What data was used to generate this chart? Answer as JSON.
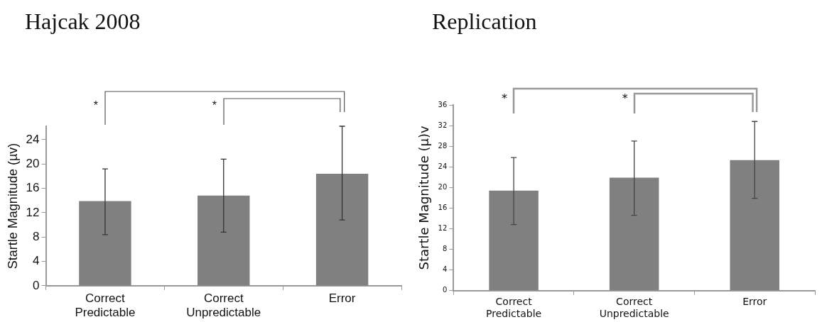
{
  "chart_data": [
    {
      "type": "bar",
      "title": "Hajcak 2008",
      "ylabel": "Startle Magnitude (µv)",
      "categories": [
        "Correct\nPredictable",
        "Correct\nUnpredictable",
        "Error"
      ],
      "values": [
        13.9,
        14.8,
        18.4
      ],
      "errors": [
        [
          8.4,
          19.2
        ],
        [
          8.8,
          20.8
        ],
        [
          10.8,
          26.2
        ]
      ],
      "color": "#808080",
      "ylim": [
        0,
        26.2
      ],
      "yticks": [
        0,
        4,
        8,
        12,
        16,
        20,
        24
      ],
      "grid": false,
      "legend": false,
      "annotations": [
        "*",
        "*"
      ]
    },
    {
      "type": "bar",
      "title": "Replication",
      "ylabel": "Startle Magnitude (µ)v",
      "categories": [
        "Correct\nPredictable",
        "Correct\nUnpredictable",
        "Error"
      ],
      "values": [
        19.4,
        21.9,
        25.3
      ],
      "errors": [
        [
          12.8,
          25.8
        ],
        [
          14.6,
          29.0
        ],
        [
          17.9,
          32.8
        ]
      ],
      "color": "#808080",
      "ylim": [
        0,
        36
      ],
      "yticks": [
        0,
        4,
        8,
        12,
        16,
        20,
        24,
        28,
        32,
        36
      ],
      "grid": false,
      "legend": false,
      "annotations": [
        "*",
        "*"
      ]
    }
  ]
}
